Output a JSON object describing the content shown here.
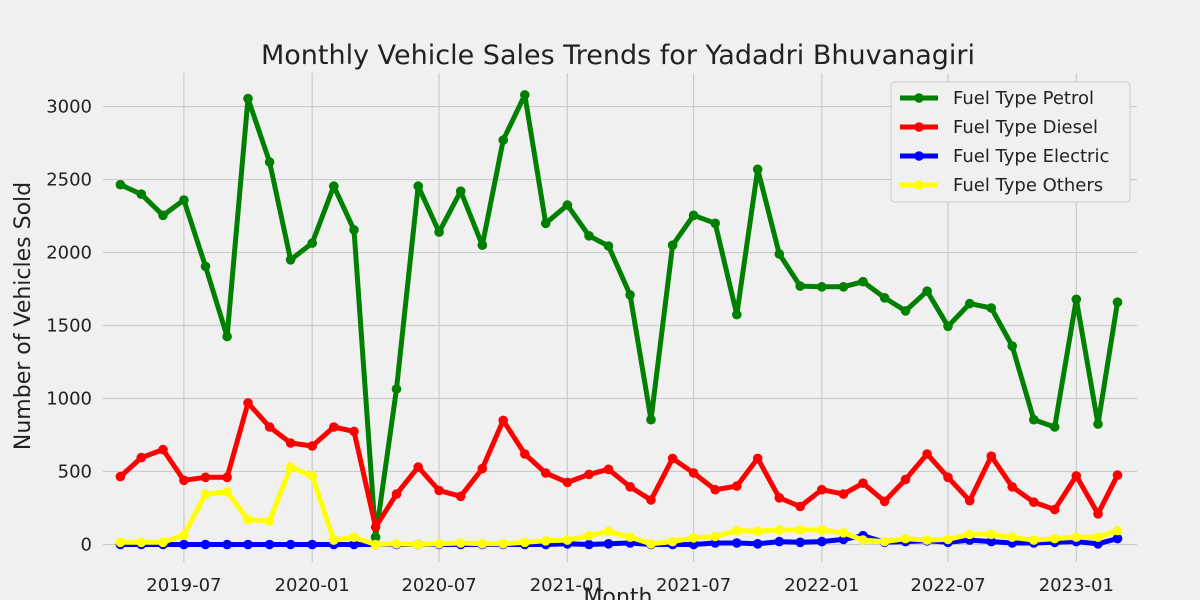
{
  "chart_data": {
    "type": "line",
    "title": "Monthly Vehicle Sales Trends for Yadadri Bhuvanagiri",
    "xlabel": "Month",
    "ylabel": "Number of Vehicles Sold",
    "x_ticks": [
      "2019-07",
      "2020-01",
      "2020-07",
      "2021-01",
      "2021-07",
      "2022-01",
      "2022-07",
      "2023-01"
    ],
    "y_ticks": [
      0,
      500,
      1000,
      1500,
      2000,
      2500,
      3000
    ],
    "ylim": [
      -120,
      3230
    ],
    "xlim": [
      "2019-03-07",
      "2023-03-29"
    ],
    "grid": true,
    "legend_position": "top-right",
    "x": [
      "2019-04",
      "2019-05",
      "2019-06",
      "2019-07",
      "2019-08",
      "2019-09",
      "2019-10",
      "2019-11",
      "2019-12",
      "2020-01",
      "2020-02",
      "2020-03",
      "2020-04",
      "2020-05",
      "2020-06",
      "2020-07",
      "2020-08",
      "2020-09",
      "2020-10",
      "2020-11",
      "2020-12",
      "2021-01",
      "2021-02",
      "2021-03",
      "2021-04",
      "2021-05",
      "2021-06",
      "2021-07",
      "2021-08",
      "2021-09",
      "2021-10",
      "2021-11",
      "2021-12",
      "2022-01",
      "2022-02",
      "2022-03",
      "2022-04",
      "2022-05",
      "2022-06",
      "2022-07",
      "2022-08",
      "2022-09",
      "2022-10",
      "2022-11",
      "2022-12",
      "2023-01",
      "2023-02",
      "2023-03"
    ],
    "series": [
      {
        "name": "Fuel Type Petrol",
        "color": "#008000",
        "values": [
          2465,
          2400,
          2255,
          2360,
          1905,
          1425,
          3055,
          2620,
          1950,
          2065,
          2455,
          2155,
          50,
          1065,
          2455,
          2140,
          2420,
          2050,
          2770,
          3080,
          2200,
          2325,
          2115,
          2045,
          1710,
          855,
          2050,
          2255,
          2200,
          1575,
          2570,
          1990,
          1770,
          1765,
          1765,
          1800,
          1690,
          1600,
          1735,
          1495,
          1650,
          1620,
          1360,
          855,
          805,
          1680,
          825,
          1660
        ]
      },
      {
        "name": "Fuel Type Diesel",
        "color": "#ff0000",
        "values": [
          465,
          595,
          650,
          440,
          460,
          460,
          970,
          805,
          695,
          675,
          805,
          775,
          120,
          345,
          530,
          370,
          330,
          520,
          850,
          620,
          490,
          425,
          480,
          515,
          395,
          305,
          590,
          490,
          375,
          400,
          590,
          320,
          260,
          375,
          345,
          420,
          295,
          445,
          620,
          460,
          300,
          605,
          395,
          290,
          240,
          470,
          210,
          475
        ]
      },
      {
        "name": "Fuel Type Electric",
        "color": "#0000ff",
        "values": [
          0,
          0,
          0,
          0,
          0,
          0,
          0,
          0,
          0,
          0,
          0,
          0,
          0,
          0,
          0,
          0,
          0,
          0,
          0,
          0,
          0,
          5,
          0,
          5,
          10,
          0,
          0,
          0,
          10,
          10,
          5,
          20,
          15,
          20,
          35,
          60,
          15,
          20,
          25,
          15,
          30,
          20,
          10,
          10,
          15,
          20,
          5,
          40
        ]
      },
      {
        "name": "Fuel Type Others",
        "color": "#ffff00",
        "values": [
          15,
          15,
          15,
          65,
          345,
          360,
          170,
          160,
          530,
          470,
          30,
          50,
          0,
          5,
          0,
          5,
          10,
          5,
          5,
          15,
          25,
          30,
          60,
          90,
          50,
          5,
          20,
          45,
          55,
          95,
          90,
          100,
          100,
          100,
          80,
          30,
          20,
          40,
          30,
          35,
          70,
          70,
          50,
          30,
          40,
          50,
          50,
          95
        ]
      }
    ]
  }
}
